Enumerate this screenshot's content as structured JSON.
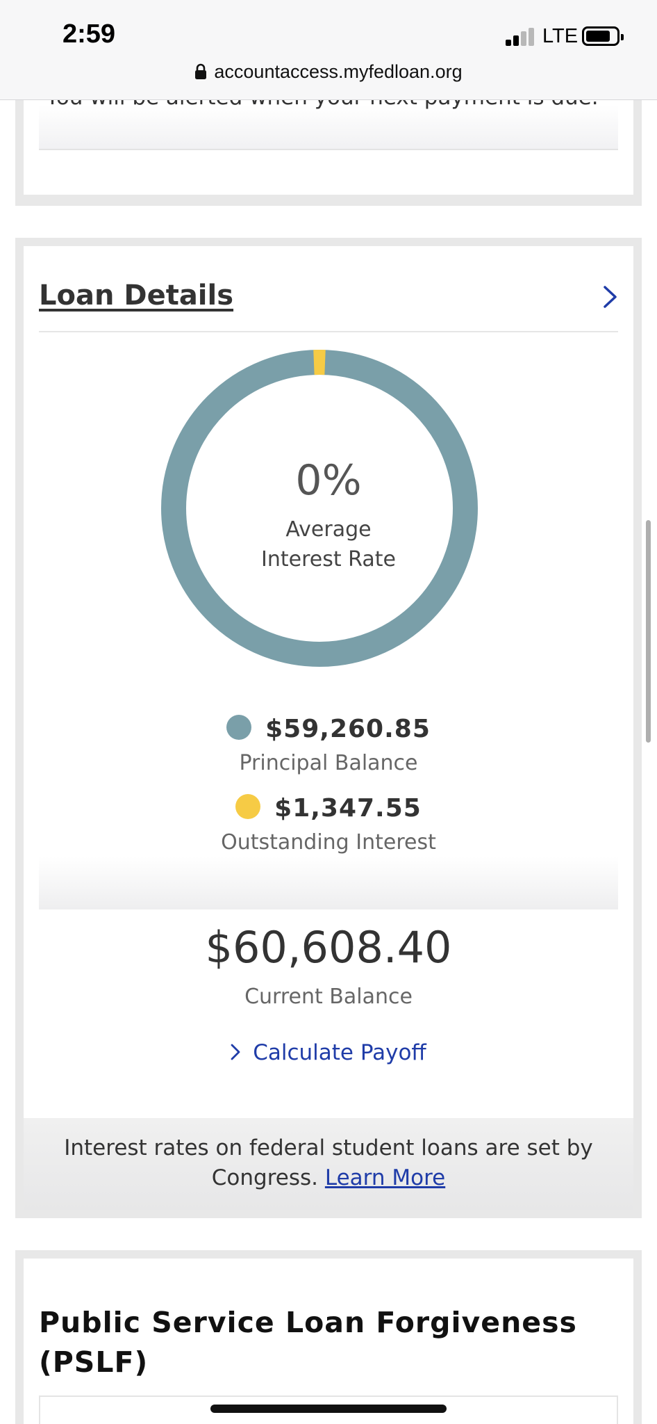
{
  "status_bar": {
    "time": "2:59",
    "network": "LTE",
    "url": "accountaccess.myfedloan.org"
  },
  "alert_card": {
    "message": "You will be alerted when your next payment is due."
  },
  "loan_details": {
    "title": "Loan Details",
    "average_rate_value": "0%",
    "average_rate_label_line1": "Average",
    "average_rate_label_line2": "Interest Rate",
    "principal_amount": "$59,260.85",
    "principal_label": "Principal Balance",
    "interest_amount": "$1,347.55",
    "interest_label": "Outstanding Interest",
    "current_balance": "$60,608.40",
    "current_balance_label": "Current Balance",
    "payoff_link": "Calculate Payoff",
    "footnote_text": "Interest rates on federal student loans are set by Congress.",
    "footnote_link": "Learn More"
  },
  "pslf": {
    "title": "Public Service Loan Forgiveness (PSLF)"
  },
  "colors": {
    "principal": "#7a9fa9",
    "interest": "#f6cb45",
    "link": "#1f3ca8"
  },
  "chart_data": {
    "type": "pie",
    "categories": [
      "Principal Balance",
      "Outstanding Interest"
    ],
    "values": [
      59260.85,
      1347.55
    ],
    "title": ""
  }
}
